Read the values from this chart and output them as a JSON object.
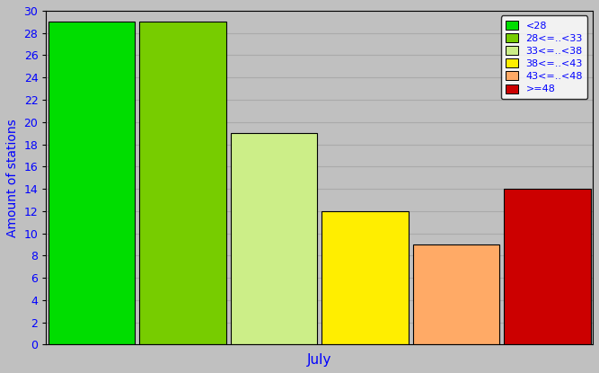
{
  "bars": [
    {
      "label": "<28",
      "value": 29,
      "color": "#00dd00"
    },
    {
      "label": "28<=..<33",
      "value": 29,
      "color": "#77cc00"
    },
    {
      "label": "33<=..<38",
      "value": 19,
      "color": "#ccee88"
    },
    {
      "label": "38<=..<43",
      "value": 12,
      "color": "#ffee00"
    },
    {
      "label": "43<=..<48",
      "value": 9,
      "color": "#ffaa66"
    },
    {
      "label": ">=48",
      "value": 14,
      "color": "#cc0000"
    }
  ],
  "ylabel": "Amount of stations",
  "xlabel": "July",
  "ylim": [
    0,
    30
  ],
  "yticks": [
    0,
    2,
    4,
    6,
    8,
    10,
    12,
    14,
    16,
    18,
    20,
    22,
    24,
    26,
    28,
    30
  ],
  "background_color": "#c0c0c0",
  "plot_bg_color": "#c0c0c0",
  "axis_label_color": "blue",
  "tick_label_color": "blue"
}
